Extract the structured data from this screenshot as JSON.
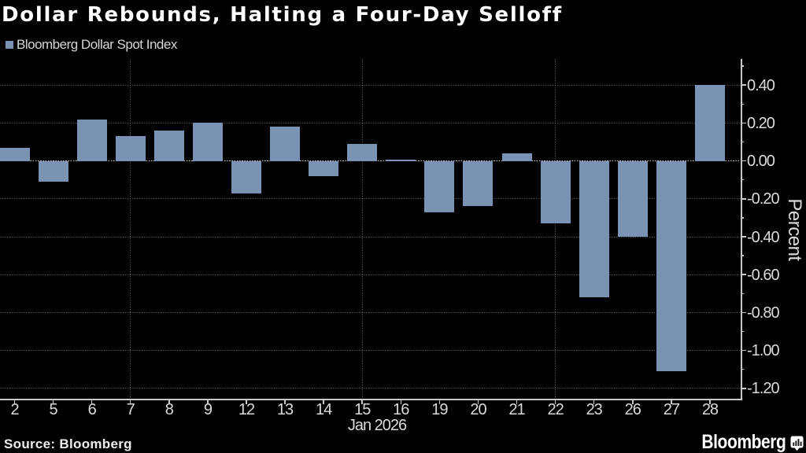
{
  "title": "Dollar Rebounds, Halting a Four-Day Selloff",
  "legend": {
    "label": "Bloomberg Dollar Spot Index",
    "swatch_color": "#7a93b4"
  },
  "source_note": "Source: Bloomberg",
  "brand": {
    "wordmark": "Bloomberg",
    "icon": "bloomberg-bubble-bar-chart-icon"
  },
  "chart_data": {
    "type": "bar",
    "title": "Dollar Rebounds, Halting a Four-Day Selloff",
    "series_name": "Bloomberg Dollar Spot Index",
    "categories": [
      "2",
      "5",
      "6",
      "7",
      "8",
      "9",
      "12",
      "13",
      "14",
      "15",
      "16",
      "19",
      "20",
      "21",
      "22",
      "23",
      "26",
      "27",
      "28"
    ],
    "values": [
      0.07,
      -0.11,
      0.22,
      0.13,
      0.16,
      0.2,
      -0.17,
      0.18,
      -0.08,
      0.09,
      0.005,
      -0.27,
      -0.24,
      0.04,
      -0.33,
      -0.72,
      -0.4,
      -1.11,
      0.4
    ],
    "xlabel": "Jan 2026",
    "ylabel": "Percent",
    "ylim": [
      -1.2548,
      0.5378
    ],
    "yticks_major": [
      0.4,
      0.2,
      0.0,
      -0.2,
      -0.4,
      -0.6,
      -0.8,
      -1.0,
      -1.2
    ],
    "ytick_labels": [
      "0.40",
      "0.20",
      "0.00",
      "-0.20",
      "-0.40",
      "-0.60",
      "-0.80",
      "-1.00",
      "-1.20"
    ],
    "yticks_minor": [
      0.5,
      0.3,
      0.1,
      -0.1,
      -0.3,
      -0.5,
      -0.7,
      -0.9,
      -1.1
    ],
    "grid_x_at_categories": [
      "7",
      "15",
      "22"
    ],
    "bar_color": "#7a93b4",
    "background_color": "#000000",
    "grid": true,
    "legend_position": "top-left",
    "y_axis_side": "right"
  }
}
